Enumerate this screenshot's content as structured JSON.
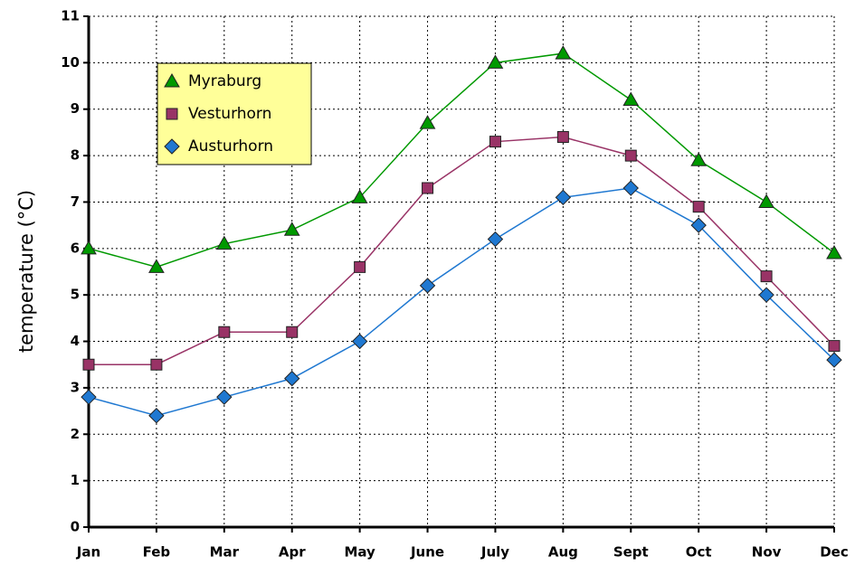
{
  "chart_data": {
    "type": "line",
    "y_label": "temperature (°C)",
    "categories": [
      "Jan",
      "Feb",
      "Mar",
      "Apr",
      "May",
      "June",
      "July",
      "Aug",
      "Sept",
      "Oct",
      "Nov",
      "Dec"
    ],
    "series": [
      {
        "name": "Myraburg",
        "color": "#009900",
        "marker": "triangle",
        "values": [
          6.0,
          5.6,
          6.1,
          6.4,
          7.1,
          8.7,
          10.0,
          10.2,
          9.2,
          7.9,
          7.0,
          5.9
        ]
      },
      {
        "name": "Vesturhorn",
        "color": "#993366",
        "marker": "square",
        "values": [
          3.5,
          3.5,
          4.2,
          4.2,
          5.6,
          7.3,
          8.3,
          8.4,
          8.0,
          6.9,
          5.4,
          3.9
        ]
      },
      {
        "name": "Austurhorn",
        "color": "#1f78d1",
        "marker": "diamond",
        "values": [
          2.8,
          2.4,
          2.8,
          3.2,
          4.0,
          5.2,
          6.2,
          7.1,
          7.3,
          6.5,
          5.0,
          3.6
        ]
      }
    ],
    "ylim": [
      0,
      11
    ],
    "yticks": [
      0,
      1,
      2,
      3,
      4,
      5,
      6,
      7,
      8,
      9,
      10,
      11
    ],
    "grid": true,
    "legend": "upper left",
    "legend_color": "#ffff99"
  }
}
